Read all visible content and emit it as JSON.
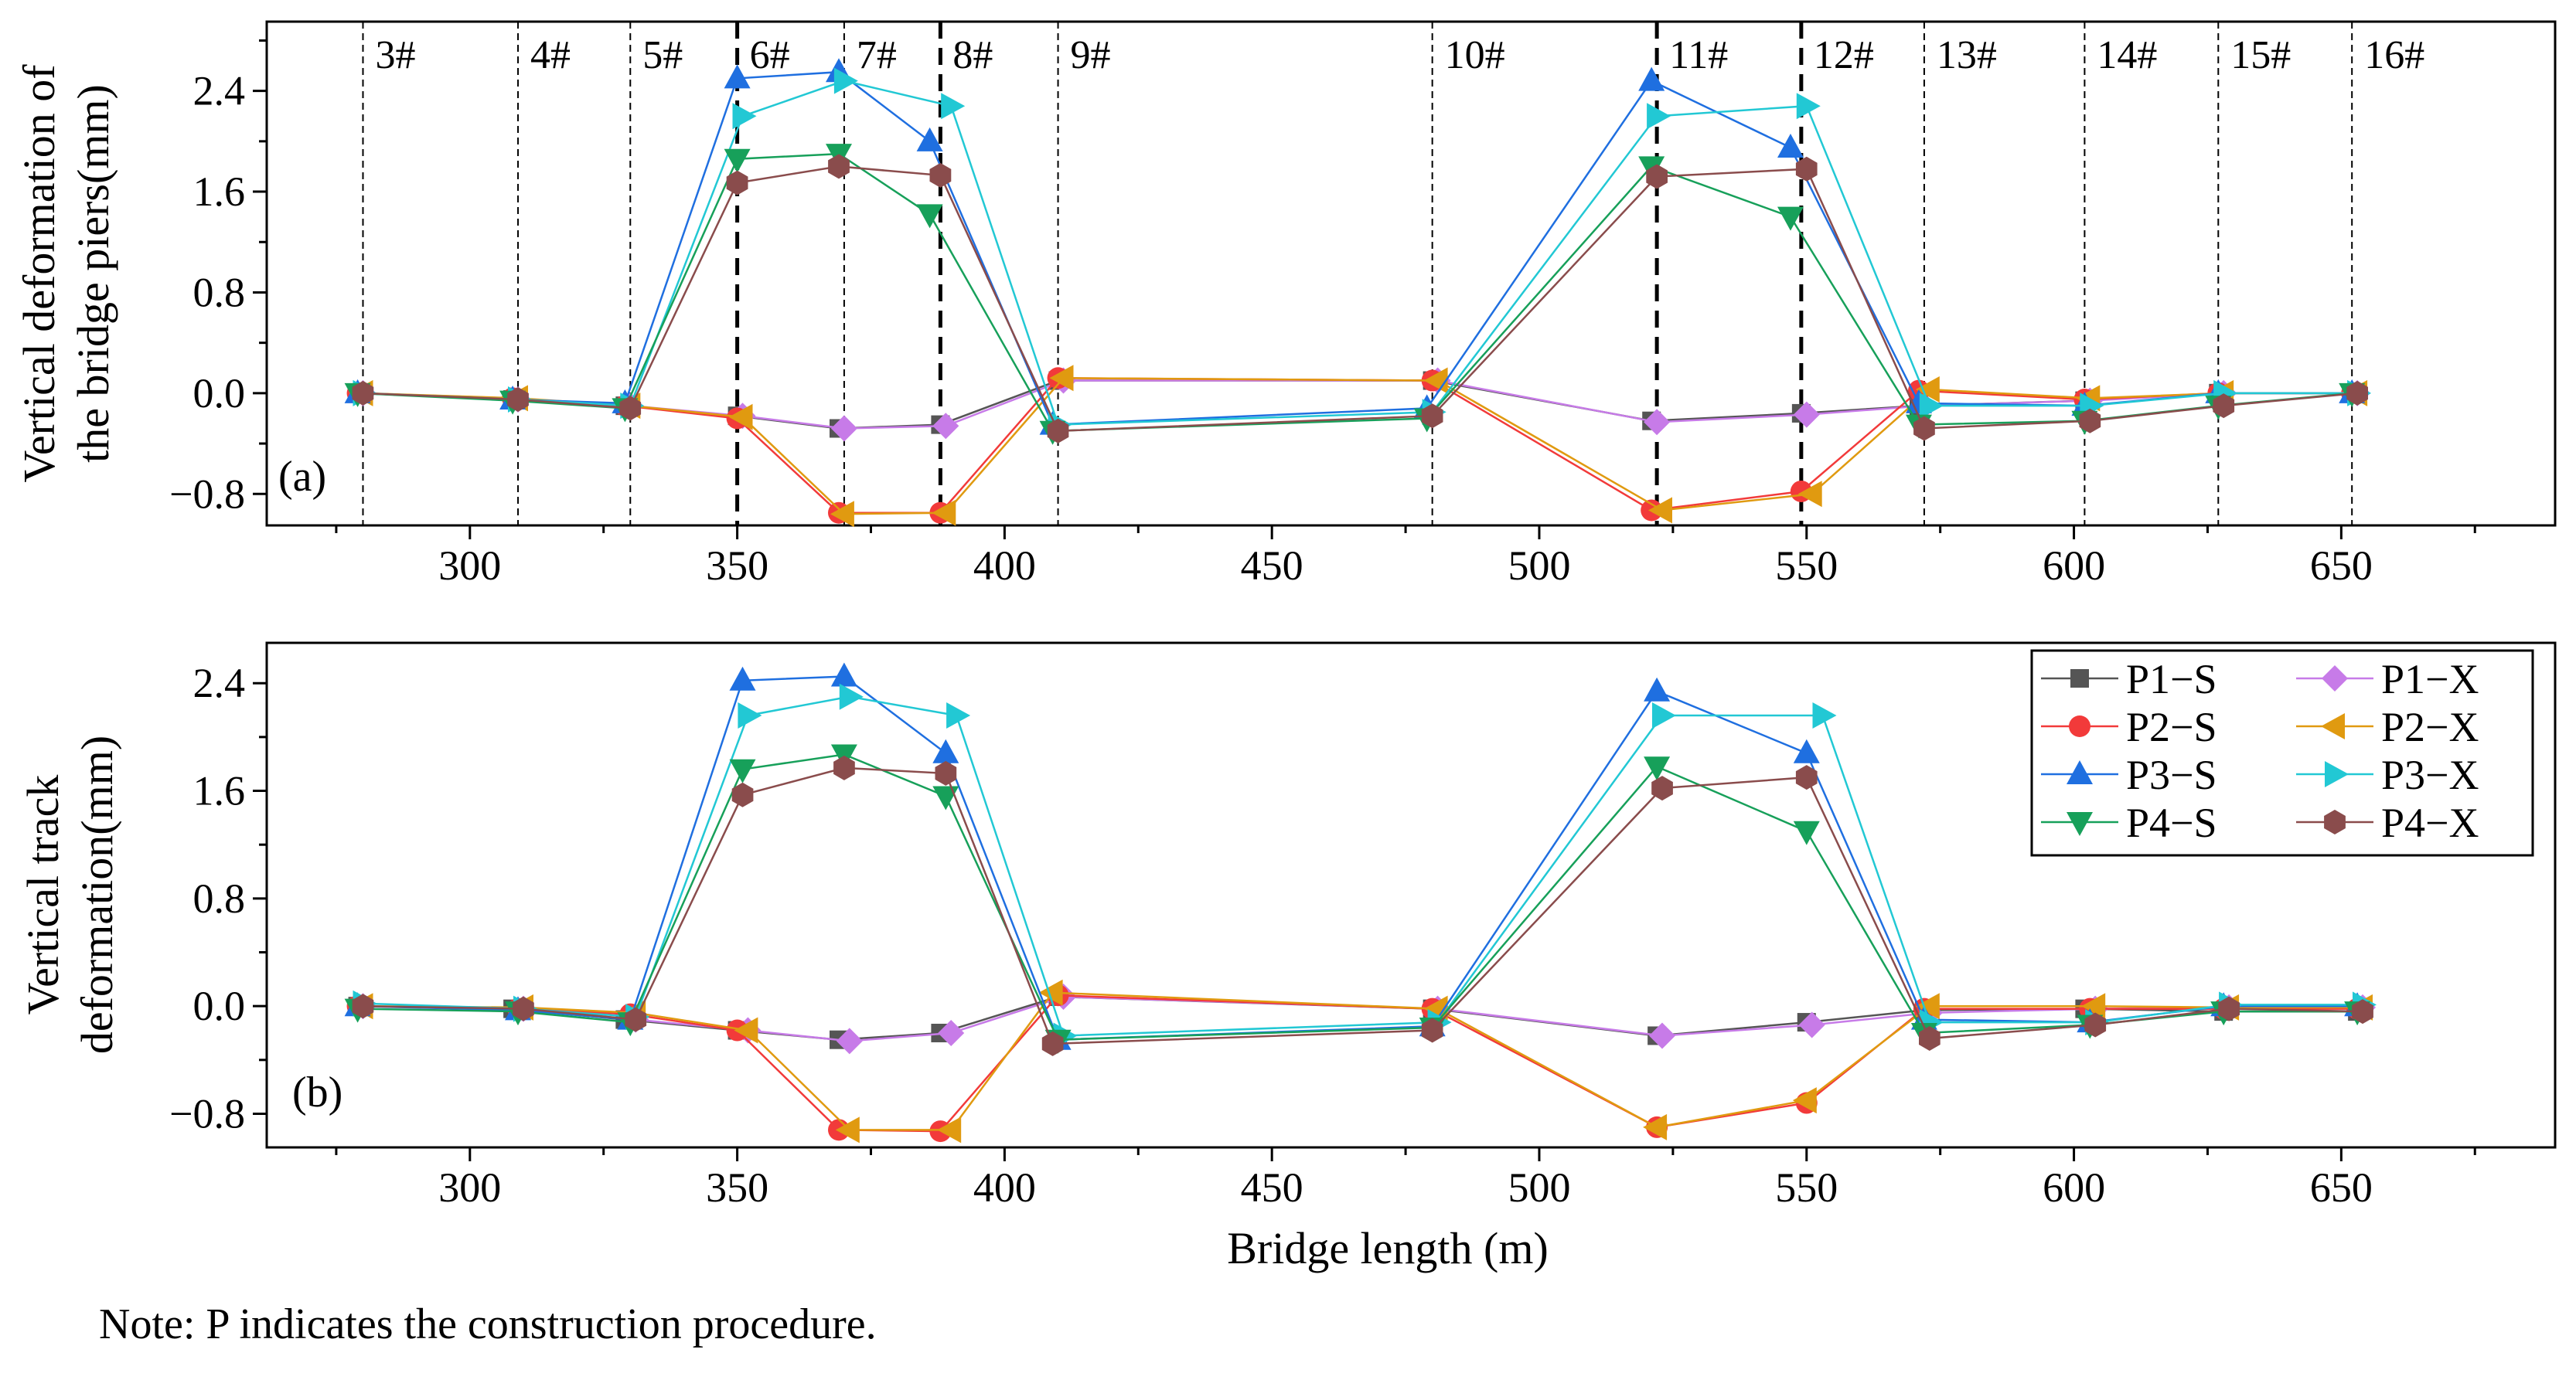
{
  "note": "Note: P indicates the construction procedure.",
  "colors": {
    "P1-S": "#555555",
    "P2-S": "#f23a3a",
    "P3-S": "#1f6fe0",
    "P4-S": "#17a05a",
    "P1-X": "#c77be8",
    "P2-X": "#e09a10",
    "P3-X": "#22c8d4",
    "P4-X": "#8a4c4c"
  },
  "chart_data": [
    {
      "type": "line",
      "panel_label": "(a)",
      "ylabel_lines": [
        "Vertical deformation of",
        "the bridge piers(mm)"
      ],
      "xlabel": "",
      "xlim": [
        262,
        690
      ],
      "ylim": [
        -1.05,
        2.95
      ],
      "xticks": [
        300,
        350,
        400,
        450,
        500,
        550,
        600,
        650
      ],
      "xtick_labels": [
        "300",
        "350",
        "400",
        "450",
        "500",
        "550",
        "600",
        "650"
      ],
      "yticks": [
        -0.8,
        0.0,
        0.8,
        1.6,
        2.4
      ],
      "ytick_labels": [
        "−0.8",
        "0.0",
        "0.8",
        "1.6",
        "2.4"
      ],
      "piers": [
        {
          "label": "3#",
          "x": 280,
          "bold": false
        },
        {
          "label": "4#",
          "x": 309,
          "bold": false
        },
        {
          "label": "5#",
          "x": 330,
          "bold": false
        },
        {
          "label": "6#",
          "x": 350,
          "bold": true
        },
        {
          "label": "7#",
          "x": 370,
          "bold": false
        },
        {
          "label": "8#",
          "x": 388,
          "bold": true
        },
        {
          "label": "9#",
          "x": 410,
          "bold": false
        },
        {
          "label": "10#",
          "x": 480,
          "bold": false
        },
        {
          "label": "11#",
          "x": 522,
          "bold": true
        },
        {
          "label": "12#",
          "x": 549,
          "bold": true
        },
        {
          "label": "13#",
          "x": 572,
          "bold": false
        },
        {
          "label": "14#",
          "x": 602,
          "bold": false
        },
        {
          "label": "15#",
          "x": 627,
          "bold": false
        },
        {
          "label": "16#",
          "x": 652,
          "bold": false
        }
      ],
      "series": [
        {
          "name": "P1−S",
          "key": "P1-S",
          "marker": "square",
          "x": [
            279,
            308,
            329,
            350,
            369,
            388,
            410,
            480,
            521,
            549,
            571,
            602,
            627,
            652
          ],
          "y": [
            0,
            -0.05,
            -0.1,
            -0.18,
            -0.28,
            -0.25,
            0.1,
            0.1,
            -0.22,
            -0.16,
            -0.1,
            -0.06,
            0,
            0
          ]
        },
        {
          "name": "P2−S",
          "key": "P2-S",
          "marker": "circle",
          "x": [
            279,
            308,
            329,
            350,
            369,
            388,
            410,
            480,
            521,
            549,
            571,
            602,
            627,
            652
          ],
          "y": [
            0,
            -0.04,
            -0.1,
            -0.2,
            -0.95,
            -0.95,
            0.12,
            0.1,
            -0.93,
            -0.78,
            0.02,
            -0.05,
            0,
            0
          ]
        },
        {
          "name": "P3−S",
          "key": "P3-S",
          "marker": "triangle-up",
          "x": [
            279,
            308,
            329,
            350,
            369,
            386,
            409,
            479,
            521,
            547,
            571,
            602,
            627,
            652
          ],
          "y": [
            0,
            -0.05,
            -0.08,
            2.5,
            2.55,
            2.0,
            -0.25,
            -0.12,
            2.48,
            1.95,
            -0.08,
            -0.1,
            0,
            0
          ]
        },
        {
          "name": "P4−S",
          "key": "P4-S",
          "marker": "triangle-down",
          "x": [
            279,
            308,
            329,
            350,
            369,
            386,
            409,
            479,
            521,
            547,
            571,
            602,
            627,
            652
          ],
          "y": [
            0,
            -0.06,
            -0.12,
            1.86,
            1.9,
            1.42,
            -0.3,
            -0.2,
            1.8,
            1.4,
            -0.25,
            -0.22,
            -0.1,
            0
          ]
        },
        {
          "name": "P1−X",
          "key": "P1-X",
          "marker": "diamond",
          "x": [
            280,
            309,
            330,
            351,
            370,
            389,
            411,
            481,
            522,
            550,
            572,
            603,
            628,
            653
          ],
          "y": [
            0,
            -0.05,
            -0.1,
            -0.18,
            -0.28,
            -0.26,
            0.1,
            0.1,
            -0.23,
            -0.17,
            -0.1,
            -0.06,
            0,
            0
          ]
        },
        {
          "name": "P2−X",
          "key": "P2-X",
          "marker": "triangle-left",
          "x": [
            280,
            309,
            330,
            351,
            370,
            389,
            411,
            481,
            523,
            551,
            573,
            603,
            628,
            653
          ],
          "y": [
            0,
            -0.04,
            -0.1,
            -0.19,
            -0.96,
            -0.95,
            0.12,
            0.1,
            -0.93,
            -0.8,
            0.03,
            -0.04,
            0,
            0
          ]
        },
        {
          "name": "P3−X",
          "key": "P3-X",
          "marker": "triangle-right",
          "x": [
            280,
            309,
            330,
            351,
            370,
            390,
            410,
            480,
            522,
            550,
            573,
            603,
            628,
            653
          ],
          "y": [
            0,
            -0.05,
            -0.1,
            2.2,
            2.48,
            2.28,
            -0.25,
            -0.15,
            2.2,
            2.28,
            -0.1,
            -0.1,
            0,
            0
          ]
        },
        {
          "name": "P4−X",
          "key": "P4-X",
          "marker": "hexagon",
          "x": [
            280,
            309,
            330,
            350,
            369,
            388,
            410,
            480,
            522,
            550,
            572,
            603,
            628,
            653
          ],
          "y": [
            0,
            -0.05,
            -0.12,
            1.67,
            1.8,
            1.73,
            -0.3,
            -0.18,
            1.72,
            1.78,
            -0.28,
            -0.22,
            -0.1,
            0
          ]
        }
      ]
    },
    {
      "type": "line",
      "panel_label": "(b)",
      "ylabel_lines": [
        "Vertical track",
        "deformation(mm)"
      ],
      "xlabel": "Bridge length (m)",
      "xlim": [
        262,
        690
      ],
      "ylim": [
        -1.05,
        2.7
      ],
      "xticks": [
        300,
        350,
        400,
        450,
        500,
        550,
        600,
        650
      ],
      "xtick_labels": [
        "300",
        "350",
        "400",
        "450",
        "500",
        "550",
        "600",
        "650"
      ],
      "yticks": [
        -0.8,
        0.0,
        0.8,
        1.6,
        2.4
      ],
      "ytick_labels": [
        "−0.8",
        "0.0",
        "0.8",
        "1.6",
        "2.4"
      ],
      "legend_position": "top-right",
      "legend_entries": [
        "P1−S",
        "P1−X",
        "P2−S",
        "P2−X",
        "P3−S",
        "P3−X",
        "P4−S",
        "P4−X"
      ],
      "series": [
        {
          "name": "P1−S",
          "key": "P1-S",
          "marker": "square",
          "x": [
            279,
            308,
            329,
            350,
            369,
            388,
            410,
            480,
            522,
            550,
            572,
            602,
            628,
            653
          ],
          "y": [
            0,
            -0.02,
            -0.1,
            -0.18,
            -0.25,
            -0.2,
            0.07,
            -0.02,
            -0.22,
            -0.12,
            -0.03,
            -0.02,
            -0.04,
            -0.04
          ]
        },
        {
          "name": "P2−S",
          "key": "P2-S",
          "marker": "circle",
          "x": [
            279,
            309,
            330,
            350,
            369,
            388,
            410,
            480,
            522,
            550,
            572,
            603,
            628,
            653
          ],
          "y": [
            0,
            -0.02,
            -0.06,
            -0.18,
            -0.92,
            -0.93,
            0.08,
            -0.02,
            -0.9,
            -0.72,
            -0.02,
            -0.02,
            -0.02,
            -0.02
          ]
        },
        {
          "name": "P3−S",
          "key": "P3-S",
          "marker": "triangle-up",
          "x": [
            279,
            309,
            330,
            351,
            370,
            389,
            410,
            480,
            522,
            550,
            572,
            603,
            628,
            653
          ],
          "y": [
            0,
            -0.03,
            -0.1,
            2.42,
            2.45,
            1.88,
            -0.25,
            -0.15,
            2.34,
            1.88,
            -0.1,
            -0.12,
            0,
            0
          ]
        },
        {
          "name": "P4−S",
          "key": "P4-S",
          "marker": "triangle-down",
          "x": [
            279,
            309,
            330,
            351,
            370,
            389,
            410,
            480,
            522,
            550,
            572,
            603,
            628,
            653
          ],
          "y": [
            -0.02,
            -0.04,
            -0.12,
            1.76,
            1.87,
            1.56,
            -0.25,
            -0.16,
            1.78,
            1.3,
            -0.2,
            -0.14,
            -0.04,
            -0.04
          ]
        },
        {
          "name": "P1−X",
          "key": "P1-X",
          "marker": "diamond",
          "x": [
            280,
            310,
            331,
            352,
            371,
            390,
            411,
            481,
            523,
            551,
            573,
            604,
            629,
            654
          ],
          "y": [
            0,
            -0.02,
            -0.1,
            -0.18,
            -0.26,
            -0.2,
            0.07,
            -0.02,
            -0.22,
            -0.14,
            -0.05,
            -0.02,
            -0.01,
            -0.01
          ]
        },
        {
          "name": "P2−X",
          "key": "P2-X",
          "marker": "triangle-left",
          "x": [
            280,
            310,
            331,
            352,
            371,
            390,
            409,
            481,
            522,
            550,
            573,
            604,
            629,
            654
          ],
          "y": [
            0,
            -0.01,
            -0.05,
            -0.18,
            -0.92,
            -0.92,
            0.1,
            -0.02,
            -0.9,
            -0.7,
            0.0,
            0.0,
            -0.01,
            -0.01
          ]
        },
        {
          "name": "P3−X",
          "key": "P3-X",
          "marker": "triangle-right",
          "x": [
            280,
            310,
            331,
            352,
            371,
            391,
            411,
            481,
            523,
            553,
            573,
            604,
            629,
            654
          ],
          "y": [
            0.02,
            -0.02,
            -0.08,
            2.16,
            2.3,
            2.16,
            -0.22,
            -0.12,
            2.16,
            2.16,
            -0.12,
            -0.12,
            0.01,
            0.01
          ]
        },
        {
          "name": "P4−X",
          "key": "P4-X",
          "marker": "hexagon",
          "x": [
            280,
            310,
            331,
            351,
            370,
            389,
            409,
            480,
            523,
            550,
            573,
            604,
            629,
            654
          ],
          "y": [
            0,
            -0.02,
            -0.1,
            1.57,
            1.77,
            1.73,
            -0.28,
            -0.18,
            1.62,
            1.7,
            -0.24,
            -0.14,
            -0.02,
            -0.04
          ]
        }
      ]
    }
  ]
}
